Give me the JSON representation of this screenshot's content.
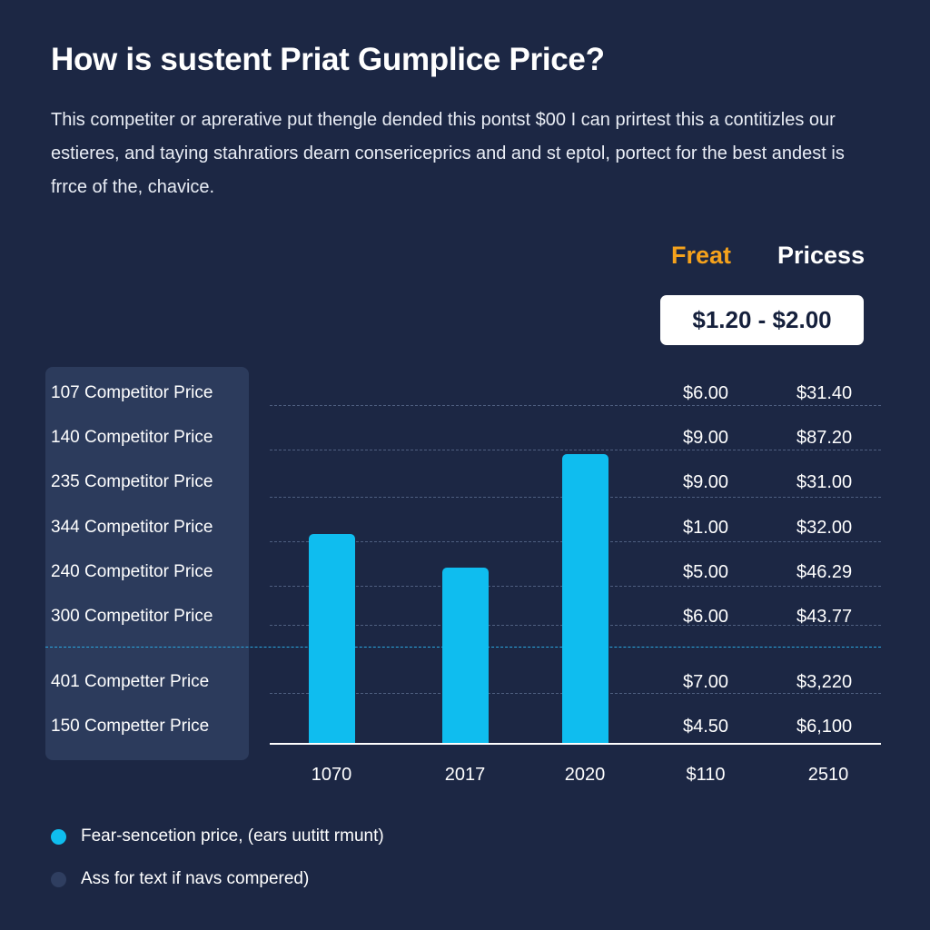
{
  "header": {
    "title": "How is sustent Priat Gumplice Price?",
    "description": "This competiter or aprerative put thengle dended this pontst $00 I can prirtest this a contitizles our estieres, and taying stahratiors dearn consericeprics and and st eptol, portect for the best andest is frrce of the, chavice."
  },
  "columns": {
    "col1": "Freat",
    "col1_color": "#f5a21c",
    "col2": "Pricess",
    "range": "$1.20 - $2.00"
  },
  "rows": [
    {
      "label": "107 Competitor Price",
      "freat": "$6.00",
      "pricess": "$31.40"
    },
    {
      "label": "140 Competitor Price",
      "freat": "$9.00",
      "pricess": "$87.20"
    },
    {
      "label": "235 Competitor Price",
      "freat": "$9.00",
      "pricess": "$31.00"
    },
    {
      "label": "344 Competitor Price",
      "freat": "$1.00",
      "pricess": "$32.00"
    },
    {
      "label": "240 Competitor Price",
      "freat": "$5.00",
      "pricess": "$46.29"
    },
    {
      "label": "300 Competitor Price",
      "freat": "$6.00",
      "pricess": "$43.77"
    },
    {
      "label": "401 Competter Price",
      "freat": "$7.00",
      "pricess": "$3,220"
    },
    {
      "label": "150 Competter Price",
      "freat": "$4.50",
      "pricess": "$6,100"
    }
  ],
  "chart_data": {
    "type": "bar",
    "categories": [
      "1070",
      "2017",
      "2020"
    ],
    "values": [
      235,
      197,
      324
    ],
    "extra_x_labels": [
      "$110",
      "2510"
    ],
    "ylim": [
      0,
      400
    ],
    "bar_color": "#0fbdef",
    "reference_line_color": "#2aa7e0",
    "grid": true
  },
  "legend": [
    {
      "label": "Fear-sencetion price, (ears uutitt rmunt)",
      "color": "#0fbdef"
    },
    {
      "label": "Ass for text if navs compered)",
      "color": "#2f3e60"
    }
  ]
}
